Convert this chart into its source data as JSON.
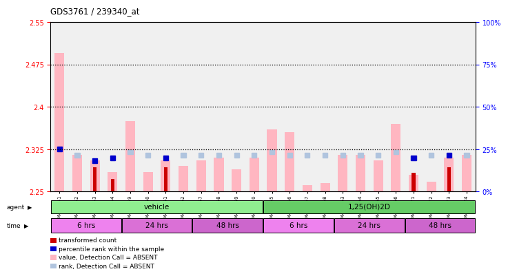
{
  "title": "GDS3761 / 239340_at",
  "ylim_left": [
    2.25,
    2.55
  ],
  "ylim_right": [
    0,
    100
  ],
  "yticks_left": [
    2.25,
    2.325,
    2.4,
    2.475,
    2.55
  ],
  "yticks_right": [
    0,
    25,
    50,
    75,
    100
  ],
  "hlines": [
    2.325,
    2.4,
    2.475
  ],
  "samples": [
    "GSM400051",
    "GSM400052",
    "GSM400053",
    "GSM400054",
    "GSM400059",
    "GSM400060",
    "GSM400061",
    "GSM400062",
    "GSM400067",
    "GSM400068",
    "GSM400069",
    "GSM400070",
    "GSM400055",
    "GSM400056",
    "GSM400057",
    "GSM400058",
    "GSM400063",
    "GSM400064",
    "GSM400065",
    "GSM400066",
    "GSM400071",
    "GSM400072",
    "GSM400073",
    "GSM400074"
  ],
  "pink_bar_heights": [
    2.495,
    2.315,
    2.305,
    2.285,
    2.375,
    2.285,
    2.305,
    2.295,
    2.305,
    2.31,
    2.29,
    2.31,
    2.36,
    2.355,
    2.262,
    2.265,
    2.315,
    2.315,
    2.305,
    2.37,
    2.28,
    2.268,
    2.31,
    2.315
  ],
  "dark_red_heights": [
    null,
    null,
    2.293,
    2.272,
    null,
    null,
    2.293,
    null,
    null,
    null,
    null,
    null,
    null,
    null,
    null,
    null,
    null,
    null,
    null,
    null,
    2.283,
    null,
    2.293,
    null
  ],
  "blue_square_y": [
    2.325,
    null,
    2.305,
    2.31,
    null,
    null,
    2.31,
    null,
    null,
    null,
    null,
    null,
    null,
    null,
    null,
    null,
    null,
    null,
    null,
    null,
    2.31,
    null,
    2.315,
    null
  ],
  "light_blue_square_y": [
    null,
    2.315,
    null,
    null,
    2.32,
    2.315,
    null,
    2.315,
    2.315,
    2.315,
    2.315,
    2.315,
    2.32,
    2.315,
    2.315,
    2.315,
    2.315,
    2.315,
    2.315,
    2.32,
    null,
    2.315,
    null,
    2.315
  ],
  "agent_labels": [
    {
      "label": "vehicle",
      "start": 0,
      "end": 12,
      "color": "#90EE90"
    },
    {
      "label": "1,25(OH)2D",
      "start": 12,
      "end": 24,
      "color": "#66CC66"
    }
  ],
  "time_labels": [
    {
      "label": "6 hrs",
      "start": 0,
      "end": 4,
      "color": "#EE82EE"
    },
    {
      "label": "24 hrs",
      "start": 4,
      "end": 8,
      "color": "#DA70D6"
    },
    {
      "label": "48 hrs",
      "start": 8,
      "end": 12,
      "color": "#CC66CC"
    },
    {
      "label": "6 hrs",
      "start": 12,
      "end": 16,
      "color": "#EE82EE"
    },
    {
      "label": "24 hrs",
      "start": 16,
      "end": 20,
      "color": "#DA70D6"
    },
    {
      "label": "48 hrs",
      "start": 20,
      "end": 24,
      "color": "#CC66CC"
    }
  ],
  "legend_items": [
    {
      "color": "#CC0000",
      "label": "transformed count"
    },
    {
      "color": "#0000CC",
      "label": "percentile rank within the sample"
    },
    {
      "color": "#FFB6C1",
      "label": "value, Detection Call = ABSENT"
    },
    {
      "color": "#B0C4DE",
      "label": "rank, Detection Call = ABSENT"
    }
  ],
  "bar_width": 0.55,
  "pink_color": "#FFB6C1",
  "dark_red_color": "#CC0000",
  "blue_color": "#0000CC",
  "light_blue_color": "#B0C4DE",
  "background_color": "#f0f0f0"
}
